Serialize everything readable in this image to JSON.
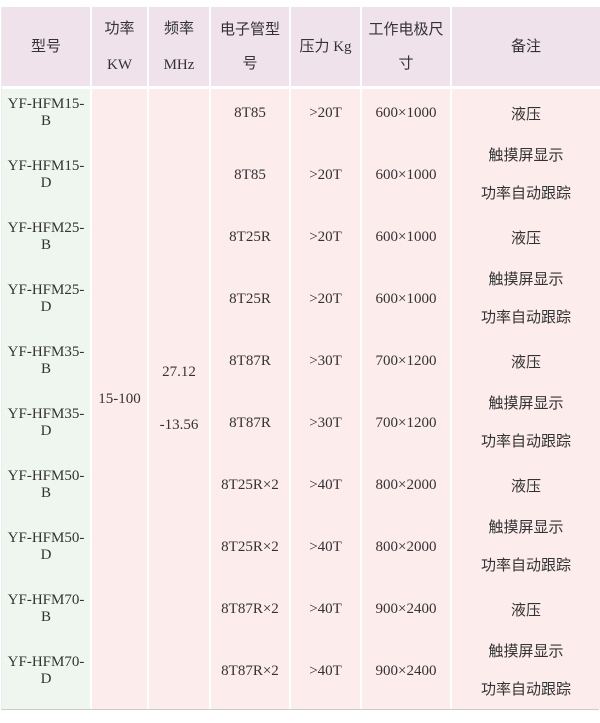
{
  "colors": {
    "header_bg": "#f0e2eb",
    "model_col_bg": "#eef6ef",
    "cell_bg": "#fdecec",
    "separator": "#ffffff",
    "text": "#333333"
  },
  "table": {
    "headers": [
      {
        "line1": "型号",
        "line2": ""
      },
      {
        "line1": "功率",
        "line2": "KW"
      },
      {
        "line1": "频率",
        "line2": "MHz"
      },
      {
        "line1": "电子管型号",
        "line2": ""
      },
      {
        "line1": "压力 Kg",
        "line2": ""
      },
      {
        "line1": "工作电极尺寸",
        "line2": ""
      },
      {
        "line1": "备注",
        "line2": ""
      }
    ],
    "merged": {
      "power": "15-100",
      "freq_line1": "27.12",
      "freq_line2": "-13.56"
    },
    "rows": [
      {
        "model": "YF-HFM15-B",
        "tube": "8T85",
        "pressure": ">20T",
        "electrode": "600×1000",
        "remark1": "液压",
        "remark2": ""
      },
      {
        "model": "YF-HFM15-D",
        "tube": "8T85",
        "pressure": ">20T",
        "electrode": "600×1000",
        "remark1": "触摸屏显示",
        "remark2": "功率自动跟踪"
      },
      {
        "model": "YF-HFM25-B",
        "tube": "8T25R",
        "pressure": ">20T",
        "electrode": "600×1000",
        "remark1": "液压",
        "remark2": ""
      },
      {
        "model": "YF-HFM25-D",
        "tube": "8T25R",
        "pressure": ">20T",
        "electrode": "600×1000",
        "remark1": "触摸屏显示",
        "remark2": "功率自动跟踪"
      },
      {
        "model": "YF-HFM35-B",
        "tube": "8T87R",
        "pressure": ">30T",
        "electrode": "700×1200",
        "remark1": "液压",
        "remark2": ""
      },
      {
        "model": "YF-HFM35-D",
        "tube": "8T87R",
        "pressure": ">30T",
        "electrode": "700×1200",
        "remark1": "触摸屏显示",
        "remark2": "功率自动跟踪"
      },
      {
        "model": "YF-HFM50-B",
        "tube": "8T25R×2",
        "pressure": ">40T",
        "electrode": "800×2000",
        "remark1": "液压",
        "remark2": ""
      },
      {
        "model": "YF-HFM50-D",
        "tube": "8T25R×2",
        "pressure": ">40T",
        "electrode": "800×2000",
        "remark1": "触摸屏显示",
        "remark2": "功率自动跟踪"
      },
      {
        "model": "YF-HFM70-B",
        "tube": "8T87R×2",
        "pressure": ">40T",
        "electrode": "900×2400",
        "remark1": "液压",
        "remark2": ""
      },
      {
        "model": "YF-HFM70-D",
        "tube": "8T87R×2",
        "pressure": ">40T",
        "electrode": "900×2400",
        "remark1": "触摸屏显示",
        "remark2": "功率自动跟踪"
      }
    ]
  }
}
